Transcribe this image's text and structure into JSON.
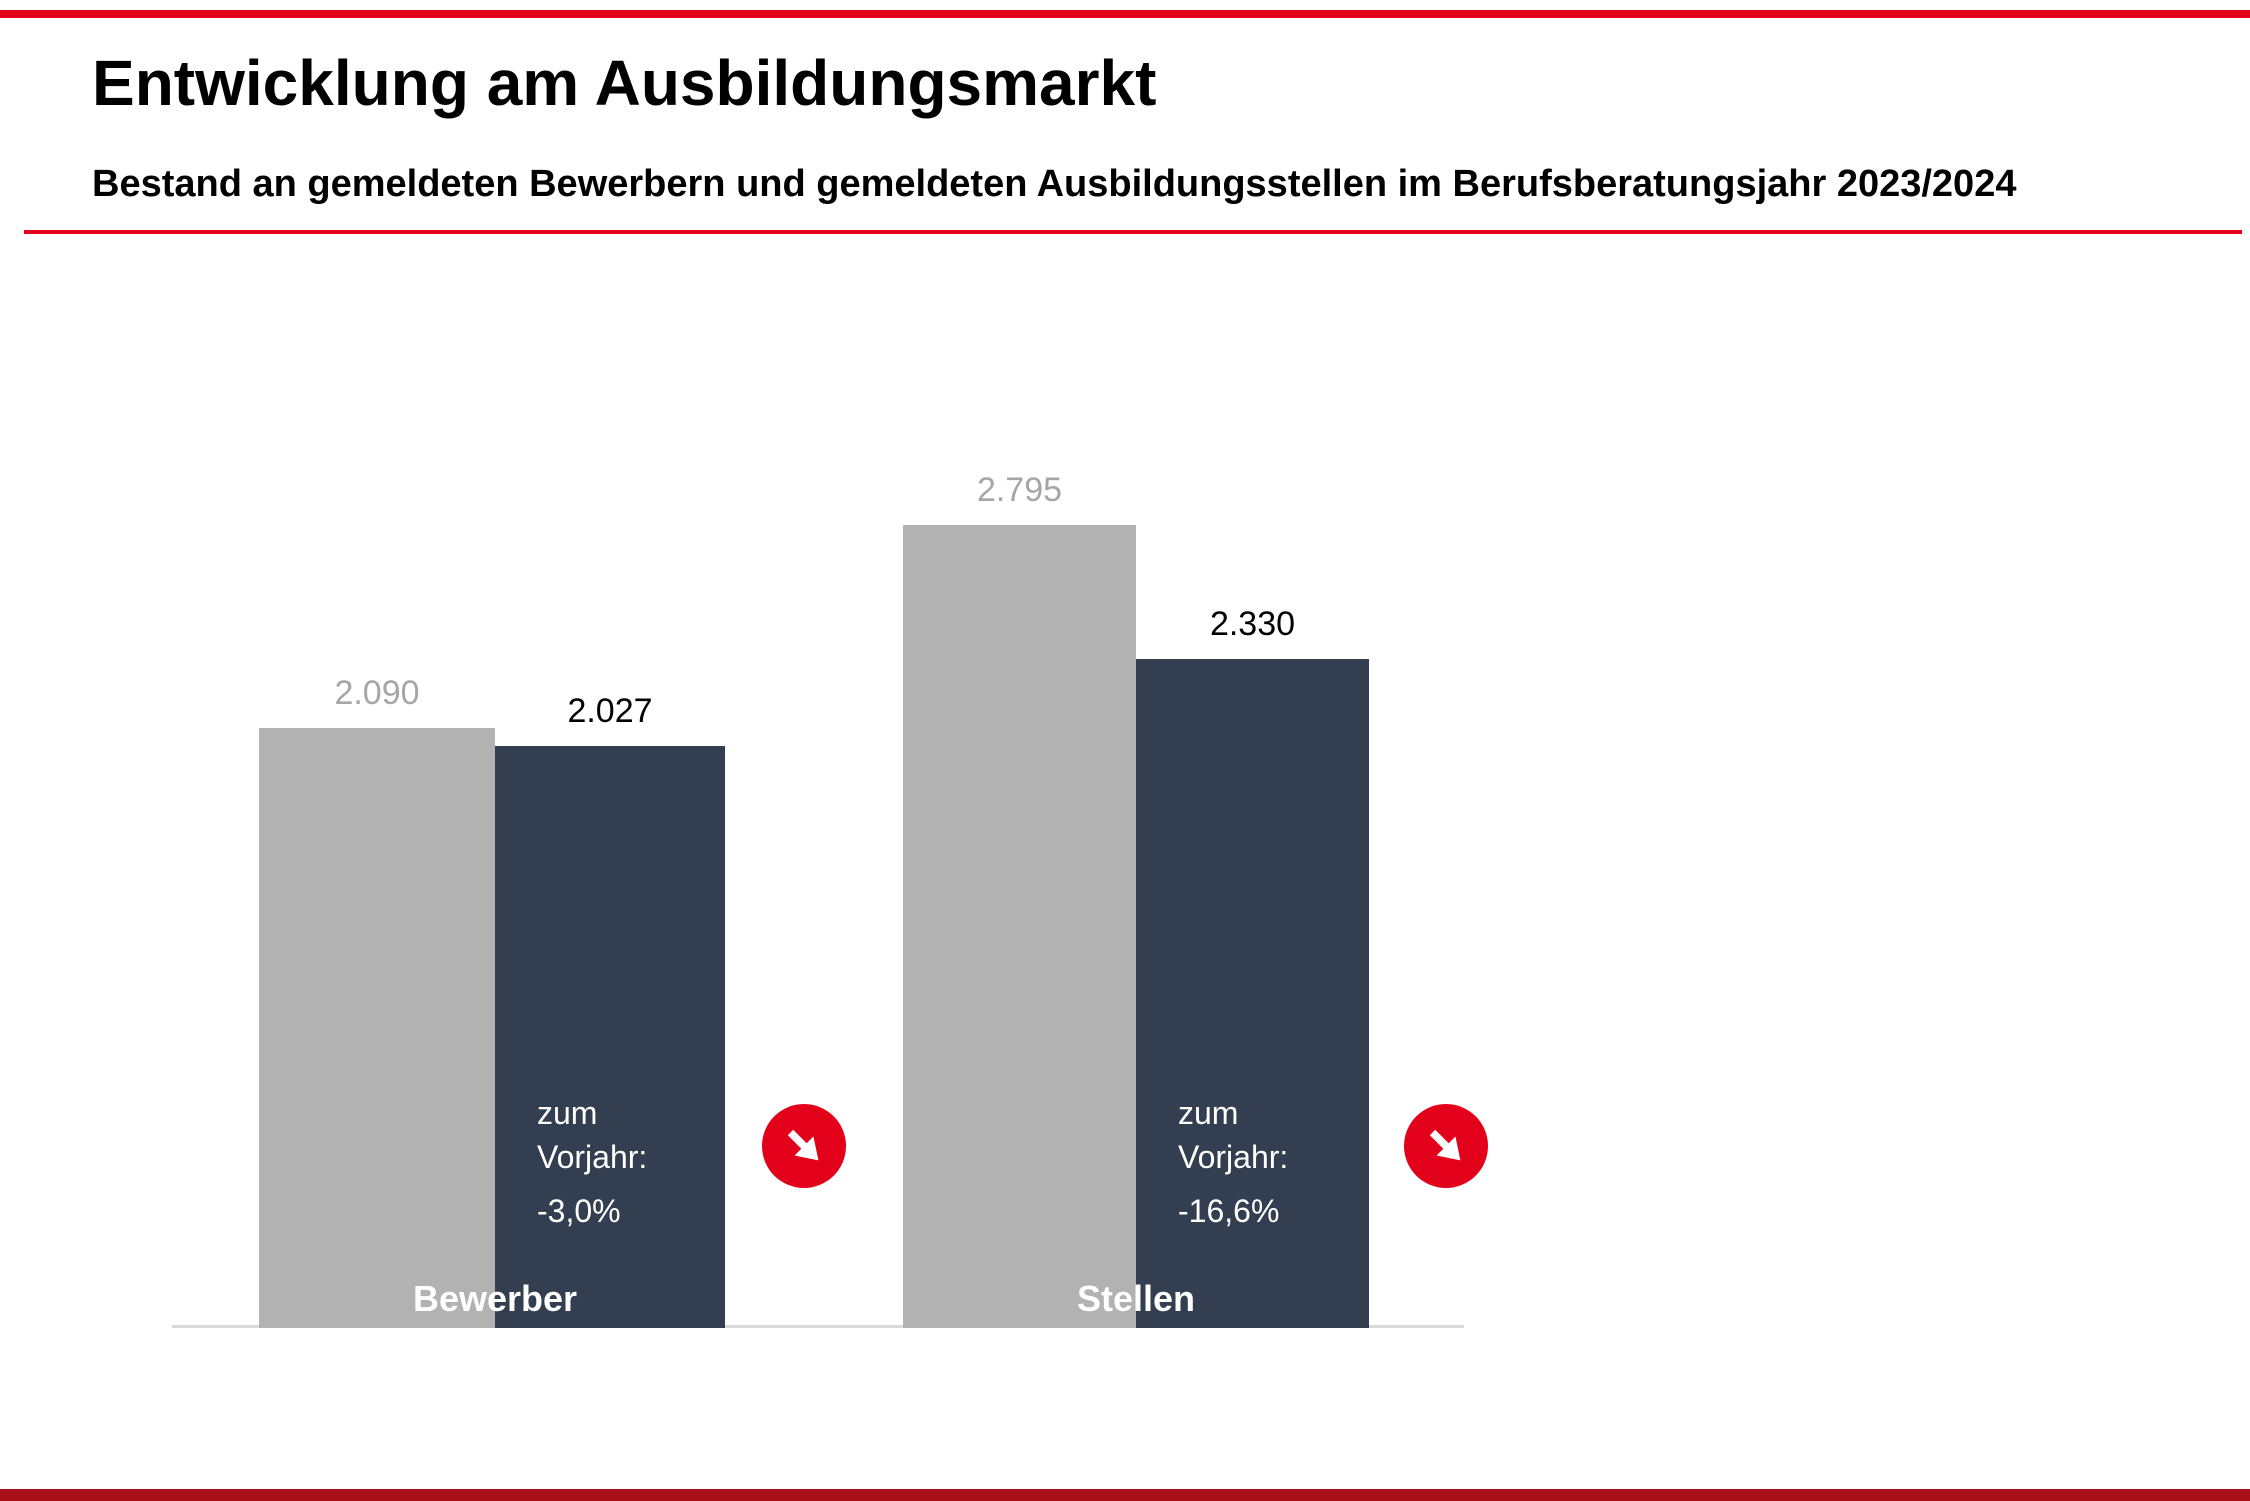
{
  "header": {
    "title": "Entwicklung am Ausbildungsmarkt",
    "subtitle": "Bestand an gemeldeten Bewerbern und gemeldeten Ausbildungsstellen im Berufsberatungsjahr 2023/2024"
  },
  "colors": {
    "accent_red": "#e2001a",
    "footer_red": "#a8101a",
    "bar_previous_year": "#b2b2b2",
    "bar_current_year": "#333f50",
    "value_label_previous": "#a6a6a6",
    "value_label_current": "#000000",
    "baseline_gray": "#d9d9d9",
    "annotation_text": "#ffffff"
  },
  "chart_data": {
    "type": "bar",
    "title": "Entwicklung am Ausbildungsmarkt",
    "subtitle": "Bestand an gemeldeten Bewerbern und gemeldeten Ausbildungsstellen im Berufsberatungsjahr 2023/2024",
    "categories": [
      "Bewerber",
      "Stellen"
    ],
    "series": [
      {
        "name": "Vorjahr",
        "color": "#b2b2b2",
        "values": [
          2090,
          2795
        ],
        "labels": [
          "2.090",
          "2.795"
        ]
      },
      {
        "name": "Berufsberatungsjahr 2023/2024",
        "color": "#333f50",
        "values": [
          2027,
          2330
        ],
        "labels": [
          "2.027",
          "2.330"
        ]
      }
    ],
    "annotations": [
      {
        "category": "Bewerber",
        "label": "zum Vorjahr:",
        "value": "-3,0%",
        "icon": "arrow-down-right-badge"
      },
      {
        "category": "Stellen",
        "label": "zum Vorjahr:",
        "value": "-16,6%",
        "icon": "arrow-down-right-badge"
      }
    ],
    "ylim": [
      0,
      2900
    ],
    "xlabel": "",
    "ylabel": "",
    "grid": false,
    "legend": "none",
    "value_labels": true
  }
}
